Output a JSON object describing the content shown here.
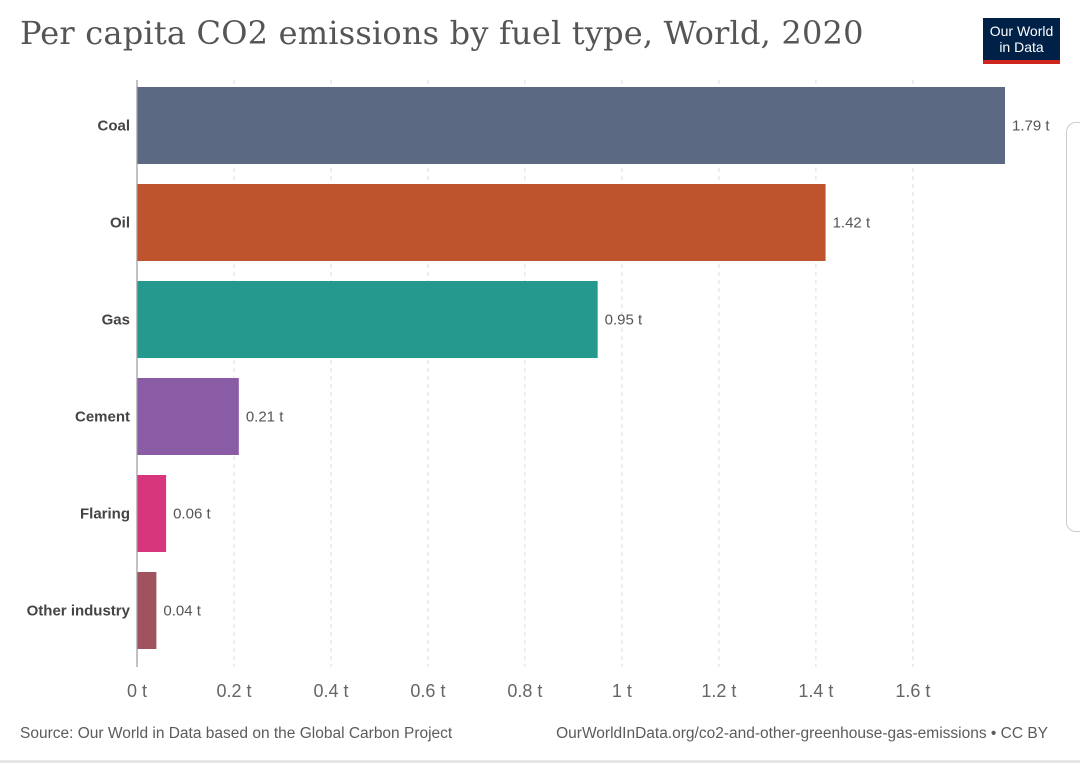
{
  "header": {
    "title": "Per capita CO2 emissions by fuel type, World, 2020",
    "logo_line1": "Our World",
    "logo_line2": "in Data"
  },
  "footer": {
    "source": "Source: Our World in Data based on the Global Carbon Project",
    "url": "OurWorldInData.org/co2-and-other-greenhouse-gas-emissions • CC BY"
  },
  "chart_data": {
    "type": "bar",
    "orientation": "horizontal",
    "title": "Per capita CO2 emissions by fuel type, World, 2020",
    "categories": [
      "Coal",
      "Oil",
      "Gas",
      "Cement",
      "Flaring",
      "Other industry"
    ],
    "values": [
      1.79,
      1.42,
      0.95,
      0.21,
      0.06,
      0.04
    ],
    "value_labels": [
      "1.79 t",
      "1.42 t",
      "0.95 t",
      "0.21 t",
      "0.06 t",
      "0.04 t"
    ],
    "colors": [
      "#5b6a82",
      "#bd542e",
      "#26998f",
      "#8a5ca6",
      "#d7357c",
      "#a0535e"
    ],
    "xticks": [
      0,
      0.2,
      0.4,
      0.6,
      0.8,
      1,
      1.2,
      1.4,
      1.6
    ],
    "xtick_labels": [
      "0 t",
      "0.2 t",
      "0.4 t",
      "0.6 t",
      "0.8 t",
      "1 t",
      "1.2 t",
      "1.4 t",
      "1.6 t"
    ],
    "xlim": [
      0,
      1.79
    ],
    "grid": "vertical dashed",
    "legend": "none"
  }
}
